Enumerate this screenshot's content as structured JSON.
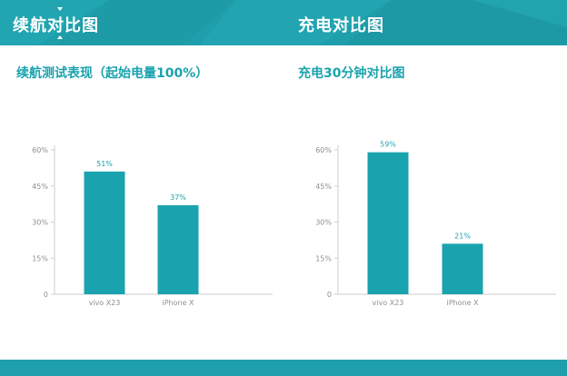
{
  "header": {
    "left_title": "续航对比图",
    "right_title": "充电对比图",
    "color": "#1f9fab"
  },
  "sections": {
    "left_title": "续航测试表现（起始电量100%）",
    "right_title": "充电30分钟对比图"
  },
  "colors": {
    "bar": "#1aa3ae",
    "label": "#1aa3ae",
    "axis": "#cfcfcf",
    "tick": "#8f8f8f"
  },
  "chart_data": [
    {
      "type": "bar",
      "title": "续航测试表现（起始电量100%）",
      "categories": [
        "vivo X23",
        "iPhone X"
      ],
      "values": [
        51,
        37
      ],
      "data_labels": [
        "51%",
        "37%"
      ],
      "ylim": [
        0,
        60
      ],
      "yticks": [
        0,
        15,
        30,
        45,
        60
      ],
      "ytick_labels": [
        "0",
        "15%",
        "30%",
        "45%",
        "60%"
      ],
      "grid": false
    },
    {
      "type": "bar",
      "title": "充电30分钟对比图",
      "categories": [
        "vivo X23",
        "iPhone X"
      ],
      "values": [
        59,
        21
      ],
      "data_labels": [
        "59%",
        "21%"
      ],
      "ylim": [
        0,
        60
      ],
      "yticks": [
        0,
        15,
        30,
        45,
        60
      ],
      "ytick_labels": [
        "0",
        "15%",
        "30%",
        "45%",
        "60%"
      ],
      "grid": false
    }
  ]
}
